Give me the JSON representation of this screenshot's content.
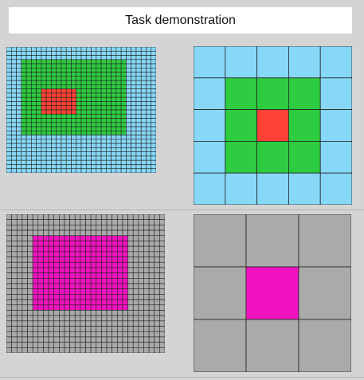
{
  "title": "Task demonstration",
  "colors": {
    "panel_background": "#d4d4d4",
    "grid_line": "#222222",
    "sky_blue": "#87d8f7",
    "green": "#2ecc40",
    "red": "#ff4136",
    "gray": "#aaaaaa",
    "magenta": "#f012be"
  },
  "examples": [
    {
      "input": {
        "rows": 30,
        "cols": 30,
        "background": "sky_blue",
        "regions": [
          {
            "color": "green",
            "row_start": 3,
            "row_end": 20,
            "col_start": 3,
            "col_end": 23
          },
          {
            "color": "red",
            "row_start": 10,
            "row_end": 15,
            "col_start": 7,
            "col_end": 13
          }
        ]
      },
      "output": {
        "rows": 5,
        "cols": 5,
        "background": "sky_blue",
        "regions": [
          {
            "color": "green",
            "row_start": 1,
            "row_end": 3,
            "col_start": 1,
            "col_end": 3
          },
          {
            "color": "red",
            "row_start": 2,
            "row_end": 2,
            "col_start": 2,
            "col_end": 2
          }
        ]
      }
    },
    {
      "input": {
        "rows": 26,
        "cols": 30,
        "background": "gray",
        "regions": [
          {
            "color": "magenta",
            "row_start": 4,
            "row_end": 17,
            "col_start": 5,
            "col_end": 22
          }
        ]
      },
      "output": {
        "rows": 3,
        "cols": 3,
        "background": "gray",
        "regions": [
          {
            "color": "magenta",
            "row_start": 1,
            "row_end": 1,
            "col_start": 1,
            "col_end": 1
          }
        ]
      }
    }
  ]
}
